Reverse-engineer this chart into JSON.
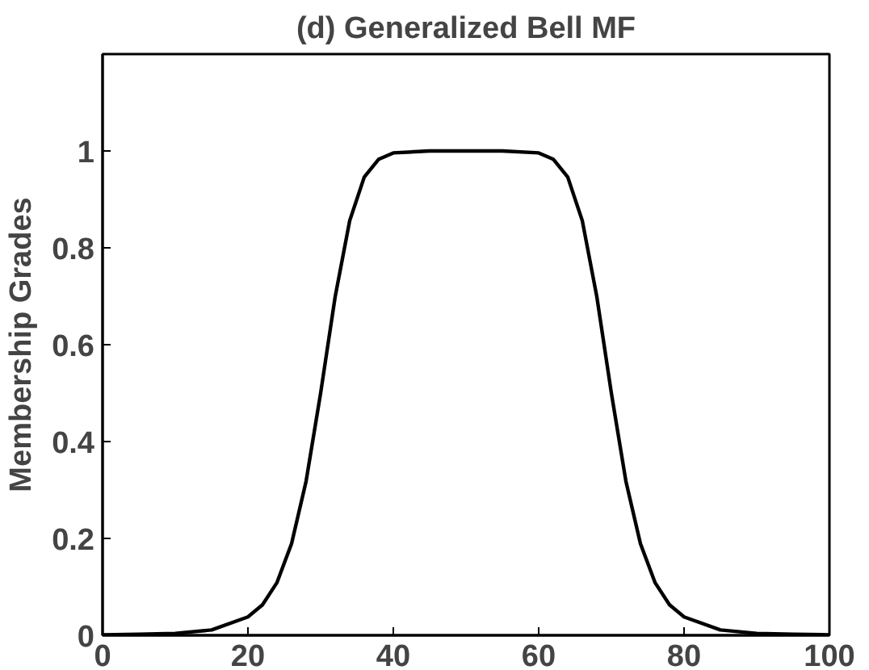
{
  "chart_data": {
    "type": "line",
    "title": "(d) Generalized Bell MF",
    "ylabel": "Membership Grades",
    "x": [
      0,
      5,
      10,
      15,
      20,
      22,
      24,
      26,
      28,
      30,
      32,
      34,
      36,
      38,
      40,
      45,
      50,
      55,
      60,
      62,
      64,
      66,
      68,
      70,
      72,
      74,
      76,
      78,
      80,
      85,
      90,
      95,
      100
    ],
    "series": [
      {
        "color": "#000000",
        "values": [
          0.001,
          0.002,
          0.004,
          0.011,
          0.038,
          0.063,
          0.109,
          0.189,
          0.318,
          0.5,
          0.699,
          0.856,
          0.946,
          0.983,
          0.996,
          1.0,
          1.0,
          1.0,
          0.996,
          0.983,
          0.946,
          0.856,
          0.699,
          0.5,
          0.318,
          0.189,
          0.109,
          0.063,
          0.038,
          0.011,
          0.004,
          0.002,
          0.001
        ]
      }
    ],
    "xlim": [
      0,
      100
    ],
    "ylim": [
      0,
      1.2
    ],
    "xticks": [
      0,
      20,
      40,
      60,
      80,
      100
    ],
    "yticks": [
      0,
      0.2,
      0.4,
      0.6,
      0.8,
      1
    ],
    "grid": false,
    "marker": "none",
    "line_style": "solid"
  }
}
